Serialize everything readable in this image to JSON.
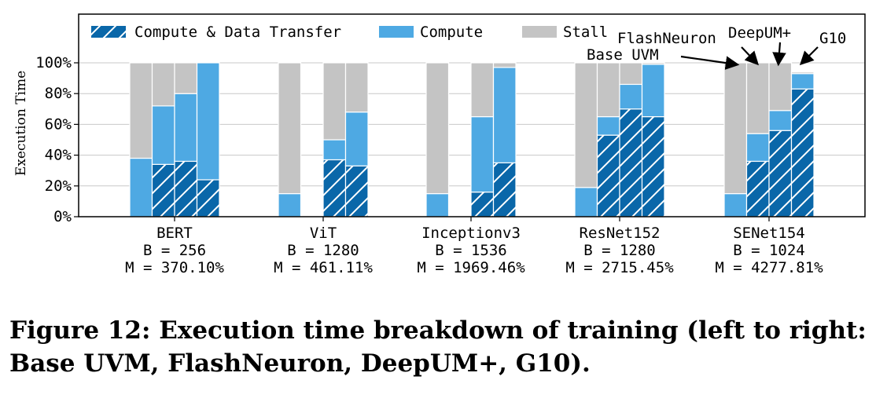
{
  "caption": "Figure 12: Execution time breakdown of training (left to right: Base UVM, FlashNeuron, DeepUM+, G10).",
  "colors": {
    "compute_data_transfer": "#0a67a9",
    "compute": "#4ea9e3",
    "stall": "#c4c4c4",
    "grid": "#c8c8c8"
  },
  "chart_data": {
    "type": "bar",
    "stacked": true,
    "ylabel": "Execution Time",
    "ylim": [
      0,
      100
    ],
    "yticks": [
      0,
      20,
      40,
      60,
      80,
      100
    ],
    "ytick_labels": [
      "0%",
      "20%",
      "40%",
      "60%",
      "80%",
      "100%"
    ],
    "grid": true,
    "legend_position": "top",
    "legend": [
      "Compute & Data Transfer",
      "Compute",
      "Stall"
    ],
    "systems": [
      "Base UVM",
      "FlashNeuron",
      "DeepUM+",
      "G10"
    ],
    "groups": [
      {
        "name": "BERT",
        "b_label": "B = 256",
        "m_label": "M = 370.10%",
        "bars": [
          {
            "system": "Base UVM",
            "compute_data_transfer": 0,
            "compute": 38,
            "stall": 62
          },
          {
            "system": "FlashNeuron",
            "compute_data_transfer": 34,
            "compute": 38,
            "stall": 28
          },
          {
            "system": "DeepUM+",
            "compute_data_transfer": 36,
            "compute": 44,
            "stall": 20
          },
          {
            "system": "G10",
            "compute_data_transfer": 24,
            "compute": 76,
            "stall": 0
          }
        ]
      },
      {
        "name": "ViT",
        "b_label": "B = 1280",
        "m_label": "M = 461.11%",
        "bars": [
          {
            "system": "Base UVM",
            "compute_data_transfer": 0,
            "compute": 15,
            "stall": 85
          },
          {
            "system": "FlashNeuron",
            "compute_data_transfer": 0,
            "compute": 0,
            "stall": 0
          },
          {
            "system": "DeepUM+",
            "compute_data_transfer": 37,
            "compute": 13,
            "stall": 50
          },
          {
            "system": "G10",
            "compute_data_transfer": 33,
            "compute": 35,
            "stall": 32
          }
        ]
      },
      {
        "name": "Inceptionv3",
        "b_label": "B = 1536",
        "m_label": "M = 1969.46%",
        "bars": [
          {
            "system": "Base UVM",
            "compute_data_transfer": 0,
            "compute": 15,
            "stall": 85
          },
          {
            "system": "FlashNeuron",
            "compute_data_transfer": 0,
            "compute": 0,
            "stall": 0
          },
          {
            "system": "DeepUM+",
            "compute_data_transfer": 16,
            "compute": 49,
            "stall": 35
          },
          {
            "system": "G10",
            "compute_data_transfer": 35,
            "compute": 62,
            "stall": 3
          }
        ]
      },
      {
        "name": "ResNet152",
        "b_label": "B = 1280",
        "m_label": "M = 2715.45%",
        "bars": [
          {
            "system": "Base UVM",
            "compute_data_transfer": 0,
            "compute": 19,
            "stall": 81
          },
          {
            "system": "FlashNeuron",
            "compute_data_transfer": 53,
            "compute": 12,
            "stall": 35
          },
          {
            "system": "DeepUM+",
            "compute_data_transfer": 70,
            "compute": 16,
            "stall": 14
          },
          {
            "system": "G10",
            "compute_data_transfer": 65,
            "compute": 34,
            "stall": 1
          }
        ]
      },
      {
        "name": "SENet154",
        "b_label": "B = 1024",
        "m_label": "M = 4277.81%",
        "bars": [
          {
            "system": "Base UVM",
            "compute_data_transfer": 0,
            "compute": 15,
            "stall": 85
          },
          {
            "system": "FlashNeuron",
            "compute_data_transfer": 36,
            "compute": 18,
            "stall": 46
          },
          {
            "system": "DeepUM+",
            "compute_data_transfer": 56,
            "compute": 13,
            "stall": 31
          },
          {
            "system": "G10",
            "compute_data_transfer": 83,
            "compute": 10,
            "stall": 1
          }
        ]
      }
    ],
    "annotations": [
      "Base UVM",
      "FlashNeuron",
      "DeepUM+",
      "G10"
    ]
  }
}
